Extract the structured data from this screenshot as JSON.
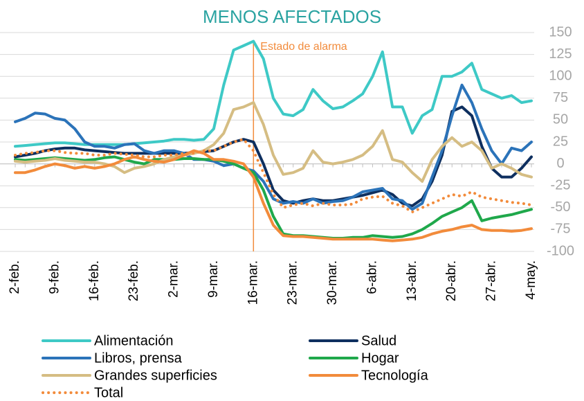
{
  "chart_data": {
    "type": "line",
    "title": "MENOS AFECTADOS",
    "categories": [
      "2-feb.",
      null,
      null,
      null,
      "9-feb.",
      null,
      null,
      null,
      "16-feb.",
      null,
      null,
      null,
      "23-feb.",
      null,
      null,
      null,
      "2-mar.",
      null,
      null,
      null,
      "9-mar.",
      null,
      null,
      null,
      "16-mar.",
      null,
      null,
      null,
      "23-mar.",
      null,
      null,
      null,
      "30-mar.",
      null,
      null,
      null,
      "6-abr.",
      null,
      null,
      null,
      "13-abr.",
      null,
      null,
      null,
      "20-abr.",
      null,
      null,
      null,
      "27-abr.",
      null,
      null,
      null,
      "4-may."
    ],
    "series": [
      {
        "name": "Alimentación",
        "color": "#3ec9c6",
        "values": [
          20,
          21,
          22,
          23,
          24,
          24,
          23,
          22,
          22,
          22,
          22,
          22,
          23,
          24,
          25,
          26,
          28,
          28,
          27,
          28,
          40,
          90,
          130,
          135,
          140,
          120,
          75,
          57,
          55,
          62,
          85,
          72,
          63,
          65,
          72,
          80,
          100,
          128,
          65,
          65,
          35,
          55,
          62,
          100,
          100,
          105,
          115,
          85,
          80,
          75,
          78,
          70,
          72
        ]
      },
      {
        "name": "Salud",
        "color": "#0e2f5f",
        "values": [
          8,
          10,
          12,
          15,
          17,
          18,
          18,
          16,
          15,
          14,
          13,
          12,
          12,
          12,
          12,
          12,
          12,
          12,
          13,
          14,
          15,
          20,
          25,
          28,
          25,
          0,
          -30,
          -42,
          -45,
          -42,
          -40,
          -42,
          -42,
          -40,
          -38,
          -36,
          -33,
          -30,
          -35,
          -45,
          -48,
          -40,
          -20,
          10,
          60,
          65,
          55,
          20,
          -5,
          -15,
          -15,
          -5,
          8
        ]
      },
      {
        "name": "Libros, prensa",
        "color": "#2b73b9",
        "values": [
          48,
          52,
          58,
          57,
          52,
          50,
          40,
          25,
          20,
          20,
          18,
          22,
          23,
          15,
          12,
          15,
          15,
          12,
          5,
          5,
          3,
          -2,
          0,
          -5,
          -8,
          -20,
          -40,
          -45,
          -43,
          -45,
          -40,
          -45,
          -43,
          -42,
          -38,
          -32,
          -30,
          -28,
          -40,
          -42,
          -52,
          -45,
          -15,
          15,
          55,
          90,
          70,
          40,
          15,
          0,
          18,
          15,
          25
        ]
      },
      {
        "name": "Hogar",
        "color": "#1fa84b",
        "values": [
          5,
          4,
          5,
          6,
          7,
          6,
          5,
          4,
          5,
          7,
          8,
          5,
          2,
          0,
          5,
          5,
          5,
          6,
          6,
          5,
          5,
          3,
          0,
          -5,
          -10,
          -30,
          -60,
          -80,
          -82,
          -82,
          -83,
          -84,
          -85,
          -85,
          -84,
          -84,
          -82,
          -83,
          -84,
          -83,
          -80,
          -75,
          -68,
          -60,
          -55,
          -50,
          -42,
          -65,
          -62,
          -60,
          -58,
          -55,
          -52
        ]
      },
      {
        "name": "Grandes superficies",
        "color": "#d5bd83",
        "values": [
          3,
          2,
          3,
          4,
          6,
          4,
          3,
          2,
          2,
          0,
          -3,
          -10,
          -5,
          -3,
          0,
          5,
          8,
          10,
          12,
          15,
          22,
          35,
          62,
          65,
          70,
          45,
          10,
          -12,
          -10,
          -5,
          15,
          2,
          0,
          2,
          5,
          10,
          20,
          38,
          5,
          2,
          -10,
          -20,
          5,
          20,
          30,
          20,
          25,
          15,
          -5,
          0,
          -5,
          -12,
          -15
        ]
      },
      {
        "name": "Tecnología",
        "color": "#f28b3b",
        "values": [
          -10,
          -10,
          -7,
          -3,
          0,
          -2,
          -5,
          -3,
          -5,
          -3,
          0,
          5,
          8,
          5,
          3,
          2,
          5,
          10,
          15,
          12,
          5,
          5,
          3,
          0,
          -15,
          -45,
          -70,
          -82,
          -83,
          -83,
          -84,
          -85,
          -86,
          -86,
          -86,
          -86,
          -86,
          -87,
          -88,
          -87,
          -86,
          -84,
          -80,
          -77,
          -75,
          -72,
          -70,
          -75,
          -76,
          -76,
          -77,
          -76,
          -74
        ]
      },
      {
        "name": "Total",
        "color": "#f28b3b",
        "style": "dotted",
        "values": [
          10,
          12,
          13,
          15,
          15,
          13,
          12,
          12,
          10,
          10,
          12,
          11,
          10,
          8,
          8,
          10,
          10,
          12,
          12,
          15,
          15,
          20,
          25,
          28,
          15,
          -10,
          -35,
          -50,
          -47,
          -45,
          -48,
          -45,
          -47,
          -47,
          -46,
          -40,
          -38,
          -37,
          -45,
          -48,
          -55,
          -50,
          -45,
          -40,
          -35,
          -37,
          -32,
          -38,
          -40,
          -42,
          -44,
          -45,
          -47
        ]
      }
    ],
    "annotation": "Estado de alarma",
    "annotation_at": "16-mar.",
    "ylim": [
      -100,
      150
    ],
    "yticks": [
      -100,
      -75,
      -50,
      -25,
      0,
      25,
      50,
      75,
      100,
      125,
      150
    ],
    "grid": true,
    "legend": "bottom"
  }
}
